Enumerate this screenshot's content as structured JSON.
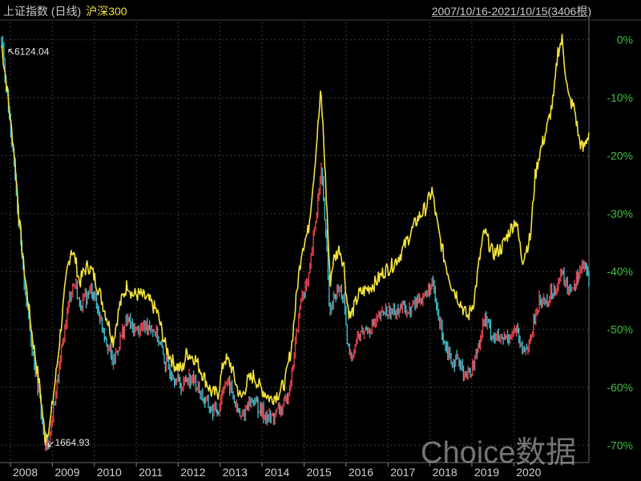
{
  "header": {
    "series1_label": "上证指数 (日线)",
    "series2_label": "沪深300",
    "date_range": "2007/10/16-2021/10/15(3406根)"
  },
  "watermark": "Choice数据",
  "colors": {
    "background": "#000000",
    "series1_up": "#e0404a",
    "series1_down": "#39b9c8",
    "series2": "#f2e23a",
    "y_axis_text": "#3cc23c",
    "x_axis_text": "#d0d0d0",
    "grid": "#3a3a3a"
  },
  "chart_data": {
    "type": "line",
    "title": "",
    "xlabel": "",
    "ylabel": "",
    "x_ticks": [
      "2008",
      "2009",
      "2010",
      "2011",
      "2012",
      "2013",
      "2014",
      "2015",
      "2016",
      "2017",
      "2018",
      "2019",
      "2020"
    ],
    "y_ticks": [
      "0%",
      "-10%",
      "-20%",
      "-30%",
      "-40%",
      "-50%",
      "-60%",
      "-70%"
    ],
    "ylim": [
      -73,
      3
    ],
    "xlim": [
      2007.79,
      2021.79
    ],
    "annotations": [
      {
        "text": "6124.04",
        "x": 2007.79,
        "y": 0
      },
      {
        "text": "1664.93",
        "x": 2008.83,
        "y": -70.5
      }
    ],
    "series": [
      {
        "name": "上证指数 (日线)",
        "points": [
          [
            2007.79,
            0
          ],
          [
            2007.9,
            -8
          ],
          [
            2008.0,
            -15
          ],
          [
            2008.1,
            -22
          ],
          [
            2008.2,
            -32
          ],
          [
            2008.3,
            -40
          ],
          [
            2008.4,
            -46
          ],
          [
            2008.5,
            -52
          ],
          [
            2008.6,
            -57
          ],
          [
            2008.7,
            -62
          ],
          [
            2008.83,
            -70.5
          ],
          [
            2008.95,
            -68
          ],
          [
            2009.1,
            -60
          ],
          [
            2009.2,
            -55
          ],
          [
            2009.35,
            -47
          ],
          [
            2009.45,
            -43
          ],
          [
            2009.55,
            -42
          ],
          [
            2009.65,
            -46
          ],
          [
            2009.75,
            -45
          ],
          [
            2009.85,
            -44
          ],
          [
            2009.95,
            -43
          ],
          [
            2010.1,
            -47
          ],
          [
            2010.3,
            -52
          ],
          [
            2010.45,
            -56
          ],
          [
            2010.6,
            -52
          ],
          [
            2010.8,
            -48
          ],
          [
            2010.9,
            -50
          ],
          [
            2011.1,
            -50
          ],
          [
            2011.3,
            -49
          ],
          [
            2011.5,
            -51
          ],
          [
            2011.7,
            -56
          ],
          [
            2011.9,
            -58
          ],
          [
            2012.1,
            -60
          ],
          [
            2012.2,
            -58
          ],
          [
            2012.4,
            -59
          ],
          [
            2012.6,
            -62
          ],
          [
            2012.8,
            -64
          ],
          [
            2012.95,
            -64
          ],
          [
            2013.1,
            -59
          ],
          [
            2013.25,
            -60
          ],
          [
            2013.4,
            -64
          ],
          [
            2013.5,
            -65.5
          ],
          [
            2013.65,
            -63
          ],
          [
            2013.8,
            -62
          ],
          [
            2013.95,
            -64
          ],
          [
            2014.2,
            -65.5
          ],
          [
            2014.4,
            -64
          ],
          [
            2014.55,
            -63
          ],
          [
            2014.7,
            -58
          ],
          [
            2014.85,
            -49
          ],
          [
            2014.95,
            -44
          ],
          [
            2015.1,
            -42
          ],
          [
            2015.25,
            -33
          ],
          [
            2015.4,
            -22
          ],
          [
            2015.45,
            -26
          ],
          [
            2015.55,
            -38
          ],
          [
            2015.62,
            -48
          ],
          [
            2015.7,
            -45
          ],
          [
            2015.85,
            -43
          ],
          [
            2015.95,
            -45
          ],
          [
            2016.02,
            -52
          ],
          [
            2016.1,
            -55
          ],
          [
            2016.3,
            -51
          ],
          [
            2016.5,
            -50
          ],
          [
            2016.7,
            -49
          ],
          [
            2016.9,
            -47
          ],
          [
            2017.1,
            -47
          ],
          [
            2017.3,
            -46
          ],
          [
            2017.5,
            -47
          ],
          [
            2017.7,
            -45
          ],
          [
            2017.9,
            -44
          ],
          [
            2018.05,
            -42
          ],
          [
            2018.2,
            -48
          ],
          [
            2018.35,
            -52
          ],
          [
            2018.5,
            -55
          ],
          [
            2018.7,
            -56
          ],
          [
            2018.9,
            -58
          ],
          [
            2019.05,
            -56
          ],
          [
            2019.2,
            -51
          ],
          [
            2019.3,
            -48
          ],
          [
            2019.5,
            -51
          ],
          [
            2019.7,
            -52
          ],
          [
            2019.9,
            -51
          ],
          [
            2020.05,
            -50
          ],
          [
            2020.2,
            -54
          ],
          [
            2020.4,
            -52
          ],
          [
            2020.5,
            -48
          ],
          [
            2020.6,
            -45
          ],
          [
            2020.8,
            -45
          ],
          [
            2020.95,
            -43
          ],
          [
            2021.05,
            -42
          ],
          [
            2021.15,
            -40.5
          ],
          [
            2021.3,
            -43
          ],
          [
            2021.45,
            -42
          ],
          [
            2021.55,
            -40
          ],
          [
            2021.65,
            -39
          ],
          [
            2021.79,
            -41
          ]
        ]
      },
      {
        "name": "沪深300",
        "points": [
          [
            2007.79,
            -1
          ],
          [
            2007.9,
            -7
          ],
          [
            2008.0,
            -14
          ],
          [
            2008.1,
            -20
          ],
          [
            2008.2,
            -30
          ],
          [
            2008.3,
            -38
          ],
          [
            2008.4,
            -44
          ],
          [
            2008.5,
            -50
          ],
          [
            2008.6,
            -55
          ],
          [
            2008.7,
            -60
          ],
          [
            2008.83,
            -69
          ],
          [
            2008.95,
            -66
          ],
          [
            2009.1,
            -57
          ],
          [
            2009.2,
            -50
          ],
          [
            2009.35,
            -40
          ],
          [
            2009.45,
            -36
          ],
          [
            2009.55,
            -38
          ],
          [
            2009.65,
            -42
          ],
          [
            2009.75,
            -40
          ],
          [
            2009.85,
            -39
          ],
          [
            2009.95,
            -40
          ],
          [
            2010.1,
            -43
          ],
          [
            2010.3,
            -48
          ],
          [
            2010.45,
            -52
          ],
          [
            2010.6,
            -46
          ],
          [
            2010.8,
            -42
          ],
          [
            2010.9,
            -44
          ],
          [
            2011.1,
            -44
          ],
          [
            2011.3,
            -45
          ],
          [
            2011.5,
            -47
          ],
          [
            2011.7,
            -53
          ],
          [
            2011.9,
            -56
          ],
          [
            2012.1,
            -57
          ],
          [
            2012.2,
            -54
          ],
          [
            2012.4,
            -55
          ],
          [
            2012.6,
            -58
          ],
          [
            2012.8,
            -61
          ],
          [
            2012.95,
            -61
          ],
          [
            2013.1,
            -55
          ],
          [
            2013.25,
            -56
          ],
          [
            2013.4,
            -60
          ],
          [
            2013.5,
            -62
          ],
          [
            2013.65,
            -59
          ],
          [
            2013.8,
            -58
          ],
          [
            2013.95,
            -60
          ],
          [
            2014.2,
            -62
          ],
          [
            2014.4,
            -61
          ],
          [
            2014.55,
            -59
          ],
          [
            2014.7,
            -53
          ],
          [
            2014.85,
            -42
          ],
          [
            2014.95,
            -36
          ],
          [
            2015.1,
            -33
          ],
          [
            2015.25,
            -22
          ],
          [
            2015.4,
            -9
          ],
          [
            2015.45,
            -15
          ],
          [
            2015.55,
            -30
          ],
          [
            2015.62,
            -42
          ],
          [
            2015.7,
            -38
          ],
          [
            2015.85,
            -36
          ],
          [
            2015.95,
            -39
          ],
          [
            2016.02,
            -45
          ],
          [
            2016.1,
            -48
          ],
          [
            2016.3,
            -44
          ],
          [
            2016.5,
            -43
          ],
          [
            2016.7,
            -42
          ],
          [
            2016.9,
            -40
          ],
          [
            2017.1,
            -39
          ],
          [
            2017.3,
            -37
          ],
          [
            2017.5,
            -34
          ],
          [
            2017.7,
            -31
          ],
          [
            2017.9,
            -29
          ],
          [
            2018.05,
            -26
          ],
          [
            2018.2,
            -33
          ],
          [
            2018.35,
            -38
          ],
          [
            2018.5,
            -42
          ],
          [
            2018.7,
            -45
          ],
          [
            2018.9,
            -48
          ],
          [
            2019.05,
            -45
          ],
          [
            2019.2,
            -37
          ],
          [
            2019.3,
            -33
          ],
          [
            2019.5,
            -37
          ],
          [
            2019.7,
            -36
          ],
          [
            2019.9,
            -33
          ],
          [
            2020.05,
            -31
          ],
          [
            2020.2,
            -38
          ],
          [
            2020.4,
            -34
          ],
          [
            2020.5,
            -24
          ],
          [
            2020.6,
            -20
          ],
          [
            2020.8,
            -15
          ],
          [
            2020.95,
            -10
          ],
          [
            2021.05,
            -2
          ],
          [
            2021.15,
            0
          ],
          [
            2021.3,
            -10
          ],
          [
            2021.45,
            -12
          ],
          [
            2021.55,
            -17
          ],
          [
            2021.65,
            -19
          ],
          [
            2021.79,
            -16
          ]
        ]
      }
    ]
  }
}
